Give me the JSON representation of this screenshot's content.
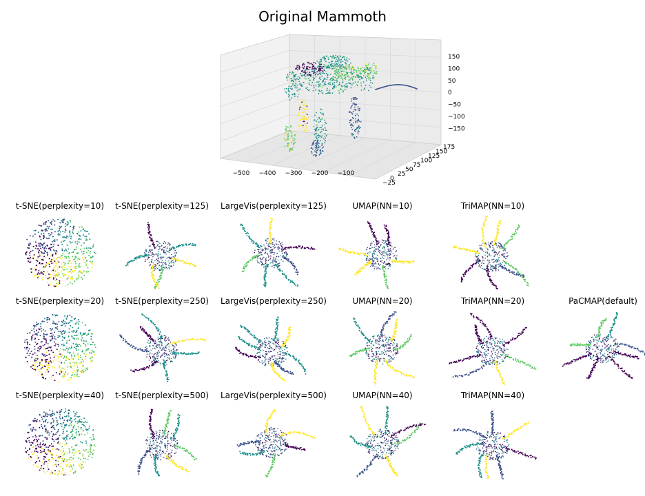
{
  "figure": {
    "title": "Original Mammoth"
  },
  "chart_data": [
    {
      "type": "scatter",
      "projection": "3d",
      "title": "Original Mammoth",
      "x_ticks": [
        "−500",
        "−400",
        "−300",
        "−200",
        "−100"
      ],
      "y_ticks": [
        "−25",
        "0",
        "25",
        "50",
        "75",
        "100",
        "125",
        "150",
        "175"
      ],
      "z_ticks": [
        "150",
        "100",
        "50",
        "0",
        "−50",
        "−100",
        "−150"
      ],
      "xlim": [
        -560,
        -60
      ],
      "ylim": [
        -25,
        175
      ],
      "zlim": [
        -180,
        180
      ],
      "colormap": [
        "#440154",
        "#3b528b",
        "#21918c",
        "#5ec962",
        "#fde725"
      ],
      "description_parts": [
        "head",
        "trunk",
        "body",
        "front legs",
        "hind legs",
        "tusks"
      ]
    },
    {
      "type": "scatter",
      "title": "t-SNE(perplexity=10)"
    },
    {
      "type": "scatter",
      "title": "t-SNE(perplexity=125)"
    },
    {
      "type": "scatter",
      "title": "LargeVis(perplexity=125)"
    },
    {
      "type": "scatter",
      "title": "UMAP(NN=10)"
    },
    {
      "type": "scatter",
      "title": "TriMAP(NN=10)"
    },
    {
      "type": "scatter",
      "title": "t-SNE(perplexity=20)"
    },
    {
      "type": "scatter",
      "title": "t-SNE(perplexity=250)"
    },
    {
      "type": "scatter",
      "title": "LargeVis(perplexity=250)"
    },
    {
      "type": "scatter",
      "title": "UMAP(NN=20)"
    },
    {
      "type": "scatter",
      "title": "TriMAP(NN=20)"
    },
    {
      "type": "scatter",
      "title": "PaCMAP(default)"
    },
    {
      "type": "scatter",
      "title": "t-SNE(perplexity=40)"
    },
    {
      "type": "scatter",
      "title": "t-SNE(perplexity=500)"
    },
    {
      "type": "scatter",
      "title": "LargeVis(perplexity=500)"
    },
    {
      "type": "scatter",
      "title": "UMAP(NN=40)"
    },
    {
      "type": "scatter",
      "title": "TriMAP(NN=40)"
    }
  ]
}
